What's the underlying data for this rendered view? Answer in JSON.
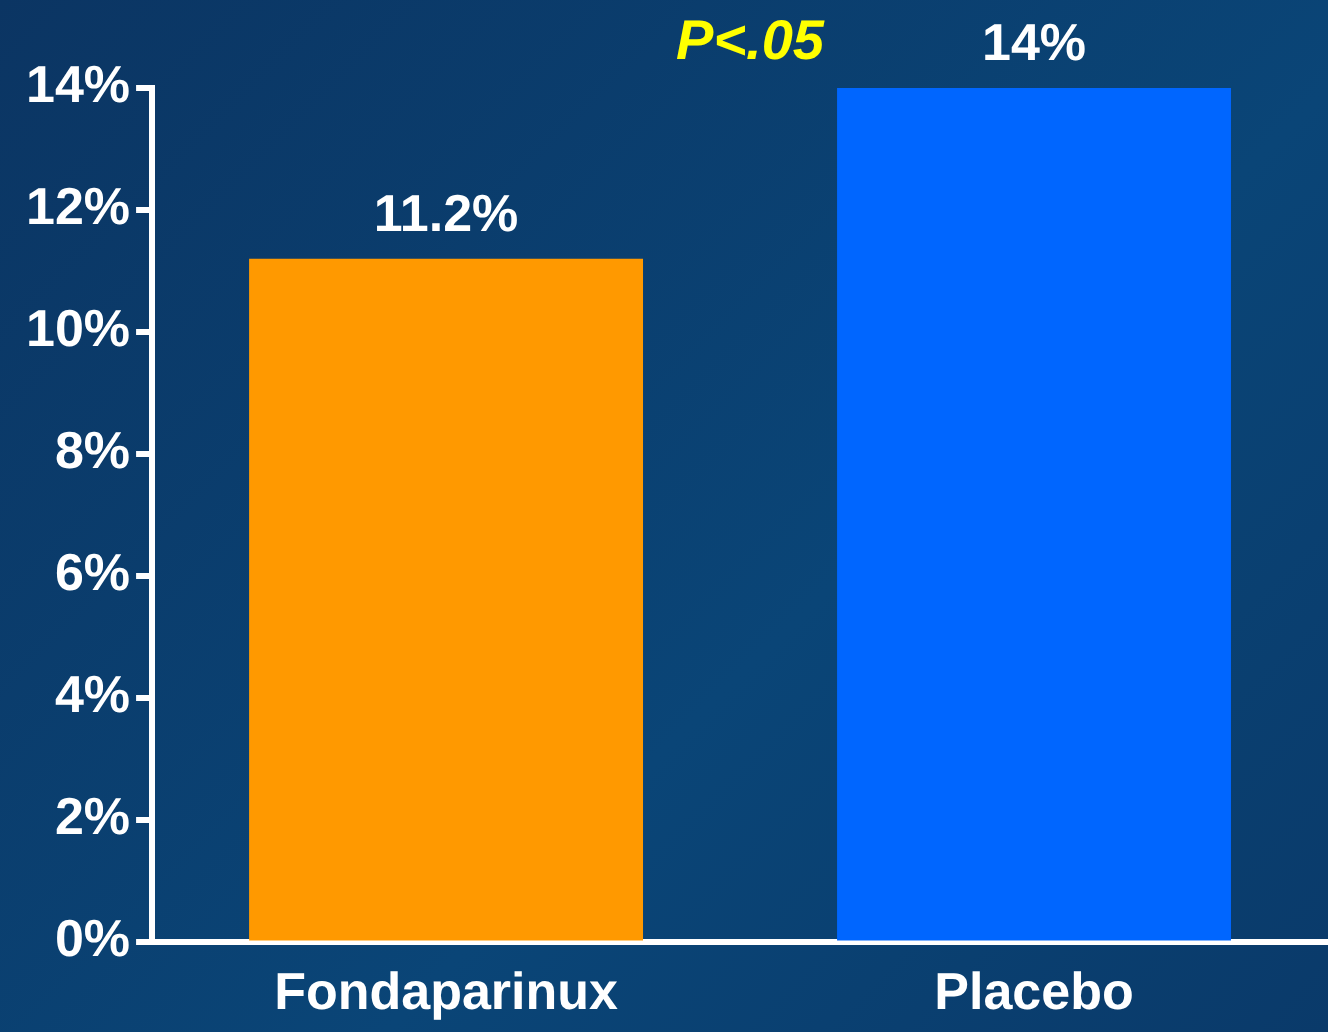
{
  "chart_data": {
    "type": "bar",
    "categories": [
      "Fondaparinux",
      "Placebo"
    ],
    "values": [
      11.2,
      14
    ],
    "colors": [
      "#ff9900",
      "#0066ff"
    ],
    "value_labels": [
      "11.2%",
      "14%"
    ],
    "ylim": [
      0,
      14
    ],
    "yticks": [
      {
        "value": 0,
        "label": "0%"
      },
      {
        "value": 2,
        "label": "2%"
      },
      {
        "value": 4,
        "label": "4%"
      },
      {
        "value": 6,
        "label": "6%"
      },
      {
        "value": 8,
        "label": "8%"
      },
      {
        "value": 10,
        "label": "10%"
      },
      {
        "value": 12,
        "label": "12%"
      },
      {
        "value": 14,
        "label": "14%"
      }
    ],
    "annotations": [
      "P<.05"
    ],
    "grid": false,
    "legend": false
  }
}
